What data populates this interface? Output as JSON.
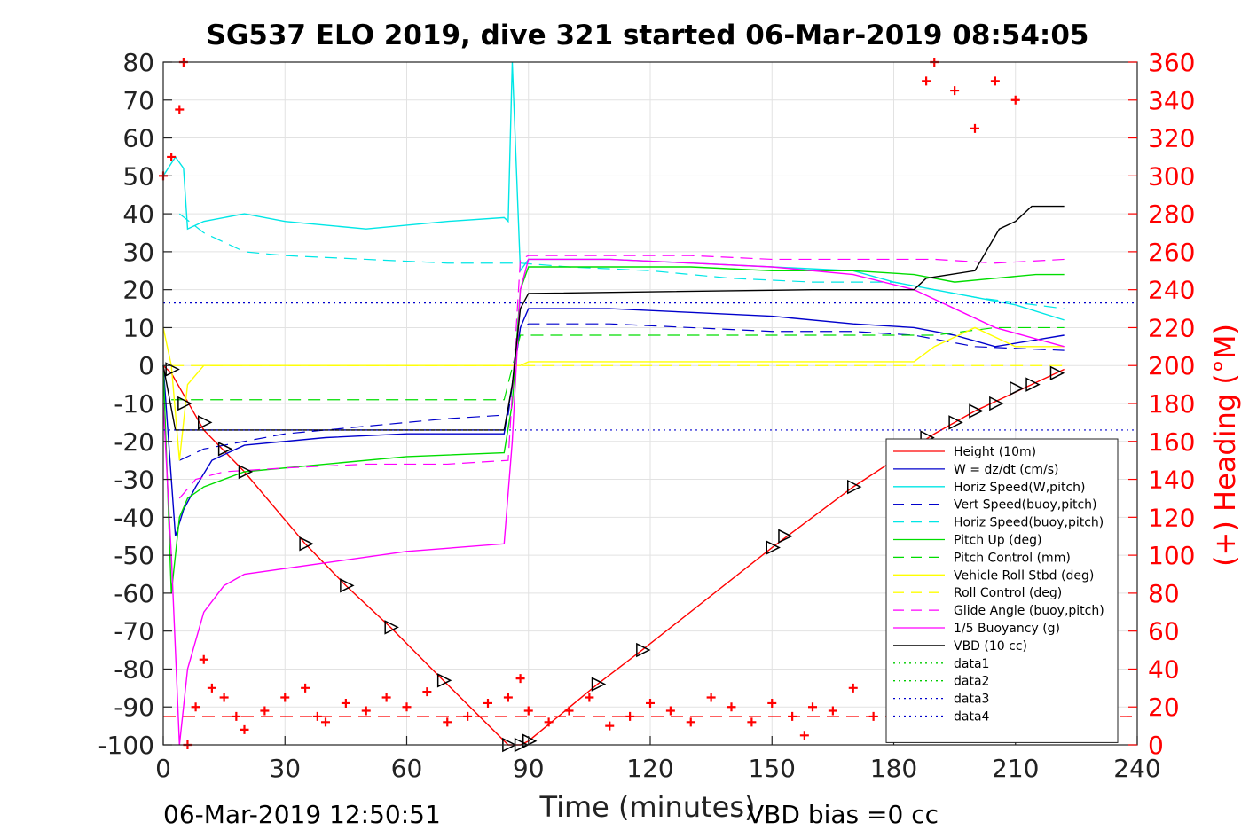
{
  "chart_data": {
    "type": "line",
    "title": "SG537 ELO 2019, dive 321 started 06-Mar-2019 08:54:05",
    "xlabel": "Time (minutes)",
    "ylabel_right": "(+) Heading (°M)",
    "xlim": [
      0,
      240
    ],
    "ylim": [
      -100,
      80
    ],
    "ylim_right": [
      0,
      360
    ],
    "x_ticks": [
      "0",
      "30",
      "60",
      "90",
      "120",
      "150",
      "180",
      "210",
      "240"
    ],
    "y_ticks": [
      "80",
      "70",
      "60",
      "50",
      "40",
      "30",
      "20",
      "10",
      "0",
      "-10",
      "-20",
      "-30",
      "-40",
      "-50",
      "-60",
      "-70",
      "-80",
      "-90",
      "-100"
    ],
    "y_ticks_right": [
      "360",
      "340",
      "320",
      "300",
      "280",
      "260",
      "240",
      "220",
      "200",
      "180",
      "160",
      "140",
      "120",
      "100",
      "80",
      "60",
      "40",
      "20",
      "0"
    ],
    "grid": true,
    "legend_position": "lower-right",
    "footer_left": "06-Mar-2019 12:50:51",
    "footer_right": "VBD bias =0 cc",
    "series": [
      {
        "name": "Height (10m)",
        "color": "#ff0000",
        "style": "solid",
        "x": [
          0,
          2,
          10,
          20,
          35,
          45,
          56,
          69,
          85,
          88,
          90,
          107,
          118,
          150,
          170,
          190,
          200,
          210,
          222
        ],
        "y": [
          0,
          -2,
          -17,
          -28,
          -47,
          -58,
          -69,
          -83,
          -100,
          -100,
          -99,
          -84,
          -75,
          -48,
          -32,
          -18,
          -12,
          -7,
          -1
        ]
      },
      {
        "name": "W = dz/dt (cm/s)",
        "color": "#0000cc",
        "style": "solid",
        "x": [
          0,
          2,
          3,
          5,
          8,
          12,
          20,
          40,
          60,
          84,
          86,
          88,
          90,
          110,
          130,
          150,
          170,
          185,
          195,
          205,
          222
        ],
        "y": [
          0,
          -30,
          -45,
          -38,
          -32,
          -25,
          -21,
          -19,
          -18,
          -18,
          -5,
          10,
          15,
          15,
          14,
          13,
          11,
          10,
          8,
          5,
          8
        ]
      },
      {
        "name": "Horiz Speed(W,pitch)",
        "color": "#00e6e6",
        "style": "solid",
        "x": [
          0,
          3,
          5,
          6,
          10,
          20,
          30,
          40,
          50,
          60,
          70,
          84,
          85,
          86,
          88,
          90,
          110,
          130,
          150,
          170,
          180,
          190,
          200,
          210,
          222
        ],
        "y": [
          50,
          55,
          52,
          36,
          38,
          40,
          38,
          37,
          36,
          37,
          38,
          39,
          38,
          80,
          25,
          28,
          28,
          27,
          26,
          25,
          22,
          20,
          18,
          16,
          12
        ]
      },
      {
        "name": "Vert Speed(buoy,pitch)",
        "color": "#0000cc",
        "style": "dashed",
        "x": [
          4,
          10,
          30,
          50,
          70,
          85,
          88,
          90,
          110,
          130,
          150,
          170,
          185,
          200,
          222
        ],
        "y": [
          -25,
          -22,
          -18,
          -16,
          -14,
          -13,
          10,
          11,
          11,
          10,
          9,
          9,
          8,
          5,
          4
        ]
      },
      {
        "name": "Horiz Speed(buoy,pitch)",
        "color": "#00e6e6",
        "style": "dashed",
        "x": [
          4,
          10,
          20,
          30,
          50,
          70,
          85,
          88,
          100,
          120,
          140,
          160,
          180,
          200,
          222
        ],
        "y": [
          40,
          35,
          30,
          29,
          28,
          27,
          27,
          27,
          26,
          25,
          23,
          22,
          22,
          18,
          15
        ]
      },
      {
        "name": "Pitch Up (deg)",
        "color": "#00dd00",
        "style": "solid",
        "x": [
          0,
          2,
          4,
          6,
          10,
          20,
          40,
          60,
          84,
          86,
          88,
          90,
          110,
          130,
          150,
          170,
          185,
          195,
          205,
          215,
          222
        ],
        "y": [
          0,
          -60,
          -40,
          -35,
          -32,
          -28,
          -26,
          -24,
          -23,
          -10,
          20,
          26,
          26,
          26,
          25,
          25,
          24,
          22,
          23,
          24,
          24
        ]
      },
      {
        "name": "Pitch Control (mm)",
        "color": "#00dd00",
        "style": "dashed",
        "x": [
          2,
          15,
          40,
          60,
          84,
          88,
          90,
          110,
          130,
          150,
          170,
          190,
          205,
          222
        ],
        "y": [
          -9,
          -9,
          -9,
          -9,
          -9,
          8,
          8,
          8,
          8,
          8,
          8,
          8,
          10,
          10
        ]
      },
      {
        "name": "Vehicle Roll Stbd (deg)",
        "color": "#ffff00",
        "style": "solid",
        "x": [
          0,
          2,
          4,
          6,
          10,
          20,
          40,
          60,
          84,
          88,
          90,
          110,
          130,
          150,
          170,
          185,
          190,
          200,
          210,
          222
        ],
        "y": [
          10,
          0,
          -25,
          -5,
          0,
          0,
          0,
          0,
          0,
          0,
          1,
          1,
          1,
          1,
          1,
          1,
          5,
          10,
          5,
          5
        ]
      },
      {
        "name": "Roll Control (deg)",
        "color": "#ffff00",
        "style": "dashed",
        "x": [
          2,
          10,
          30,
          60,
          84,
          88,
          100,
          130,
          160,
          185,
          200,
          222
        ],
        "y": [
          0,
          0,
          0,
          0,
          0,
          0,
          0,
          0,
          0,
          0,
          0,
          0
        ]
      },
      {
        "name": "Glide Angle (buoy,pitch)",
        "color": "#ff00ff",
        "style": "dashed",
        "x": [
          4,
          8,
          15,
          30,
          50,
          70,
          85,
          88,
          90,
          110,
          130,
          150,
          170,
          190,
          205,
          222
        ],
        "y": [
          -35,
          -30,
          -28,
          -27,
          -26,
          -26,
          -25,
          28,
          29,
          29,
          29,
          28,
          28,
          28,
          27,
          28
        ]
      },
      {
        "name": "1/5 Buoyancy (g)",
        "color": "#ff00ff",
        "style": "solid",
        "x": [
          0,
          2,
          4,
          6,
          10,
          15,
          20,
          40,
          60,
          84,
          86,
          88,
          90,
          110,
          130,
          150,
          170,
          185,
          195,
          205,
          222
        ],
        "y": [
          -10,
          -50,
          -100,
          -80,
          -65,
          -58,
          -55,
          -52,
          -49,
          -47,
          -20,
          20,
          28,
          28,
          27,
          26,
          24,
          20,
          15,
          10,
          5
        ]
      },
      {
        "name": "VBD (10 cc)",
        "color": "#000000",
        "style": "solid",
        "x": [
          0,
          3,
          4,
          84,
          86,
          88,
          90,
          160,
          185,
          188,
          200,
          206,
          210,
          214,
          222
        ],
        "y": [
          0,
          -17,
          -17,
          -17,
          -5,
          15,
          19,
          20,
          20,
          23,
          25,
          36,
          38,
          42,
          42
        ]
      },
      {
        "name": "data1",
        "color": "#00cc00",
        "style": "dotted",
        "x": [],
        "y": []
      },
      {
        "name": "data2",
        "color": "#00cc00",
        "style": "dotted",
        "x": [],
        "y": []
      },
      {
        "name": "data3",
        "color": "#0000cc",
        "style": "dotted",
        "x": [
          0,
          240
        ],
        "y": [
          16.5,
          16.5
        ]
      },
      {
        "name": "data4",
        "color": "#0000cc",
        "style": "dotted",
        "x": [
          0,
          240
        ],
        "y": [
          -17,
          -17
        ]
      }
    ],
    "heading": {
      "color": "#ff0000",
      "marker": "+",
      "axis": "right",
      "x": [
        0,
        2,
        4,
        5,
        6,
        8,
        10,
        12,
        15,
        18,
        20,
        25,
        30,
        35,
        38,
        40,
        45,
        50,
        55,
        60,
        65,
        70,
        75,
        80,
        85,
        88,
        90,
        95,
        100,
        105,
        110,
        115,
        120,
        125,
        130,
        135,
        140,
        145,
        150,
        155,
        158,
        160,
        165,
        170,
        175,
        180,
        185,
        188,
        190,
        195,
        200,
        205,
        210
      ],
      "y": [
        300,
        310,
        335,
        360,
        0,
        20,
        45,
        30,
        25,
        15,
        8,
        18,
        25,
        30,
        15,
        12,
        22,
        18,
        25,
        20,
        28,
        12,
        15,
        22,
        25,
        35,
        18,
        12,
        18,
        25,
        10,
        15,
        22,
        18,
        12,
        25,
        20,
        12,
        22,
        15,
        5,
        20,
        18,
        30,
        15,
        25,
        20,
        350,
        360,
        345,
        325,
        350,
        340
      ]
    },
    "markers": {
      "color": "#000000",
      "shape": "triangle",
      "x": [
        2,
        5,
        10,
        15,
        20,
        35,
        45,
        56,
        69,
        85,
        88,
        90,
        107,
        118,
        150,
        153,
        170,
        188,
        195,
        200,
        205,
        210,
        214,
        220
      ],
      "y": [
        -1,
        -10,
        -15,
        -22,
        -28,
        -47,
        -58,
        -69,
        -83,
        -100,
        -100,
        -99,
        -84,
        -75,
        -48,
        -45,
        -32,
        -19,
        -15,
        -12,
        -10,
        -6,
        -5,
        -2
      ]
    },
    "hline": {
      "color": "#ff0000",
      "style": "dashed",
      "axis": "right",
      "y": 15
    }
  }
}
